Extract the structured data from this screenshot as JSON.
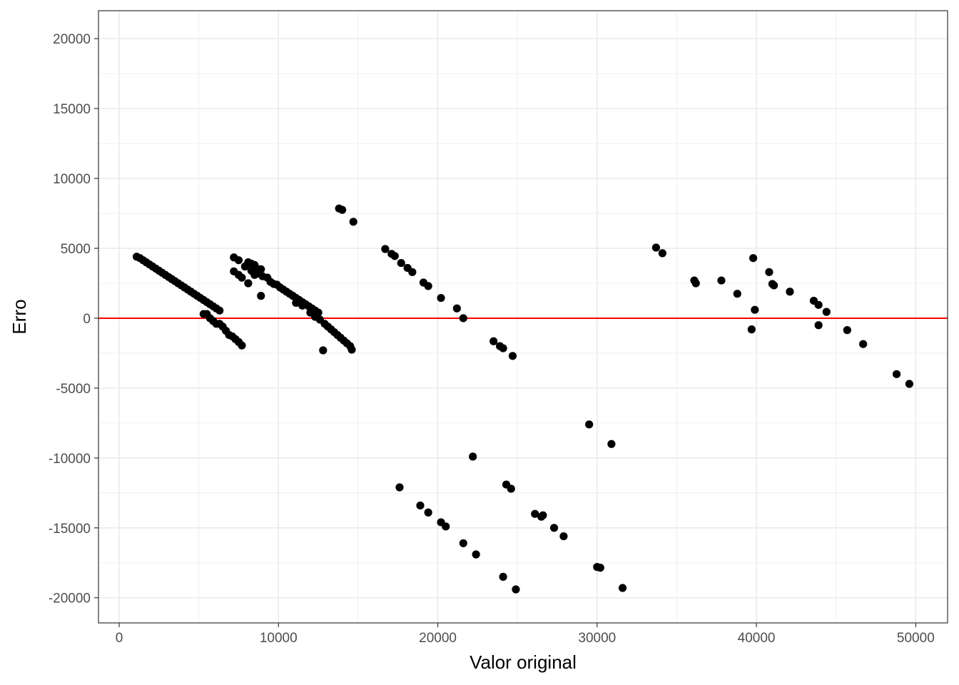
{
  "chart_data": {
    "type": "scatter",
    "xlabel": "Valor original",
    "ylabel": "Erro",
    "xlim": [
      -1300,
      52000
    ],
    "ylim": [
      -21800,
      22000
    ],
    "x_ticks": [
      0,
      10000,
      20000,
      30000,
      40000,
      50000
    ],
    "x_tick_labels": [
      "0",
      "10000",
      "20000",
      "30000",
      "40000",
      "50000"
    ],
    "y_ticks": [
      -20000,
      -15000,
      -10000,
      -5000,
      0,
      5000,
      10000,
      15000,
      20000
    ],
    "y_tick_labels": [
      "-20000",
      "-15000",
      "-10000",
      "-5000",
      "0",
      "5000",
      "10000",
      "15000",
      "20000"
    ],
    "grid": true,
    "reference_line": {
      "y": 0,
      "color": "#ff0000"
    },
    "point_color": "#000000",
    "series": [
      {
        "points": [
          [
            1100,
            4400
          ],
          [
            1300,
            4300
          ],
          [
            1500,
            4150
          ],
          [
            1700,
            4000
          ],
          [
            1900,
            3850
          ],
          [
            2100,
            3700
          ],
          [
            2300,
            3550
          ],
          [
            2500,
            3400
          ],
          [
            2700,
            3250
          ],
          [
            2900,
            3100
          ],
          [
            3100,
            2950
          ],
          [
            3300,
            2800
          ],
          [
            3500,
            2650
          ],
          [
            3700,
            2500
          ],
          [
            3900,
            2350
          ],
          [
            4100,
            2200
          ],
          [
            4300,
            2050
          ],
          [
            4500,
            1900
          ],
          [
            4700,
            1750
          ],
          [
            4900,
            1600
          ],
          [
            5100,
            1450
          ],
          [
            5300,
            1300
          ],
          [
            5500,
            1150
          ],
          [
            5700,
            1000
          ],
          [
            5900,
            850
          ],
          [
            6100,
            700
          ],
          [
            6300,
            550
          ],
          [
            5300,
            300
          ],
          [
            5500,
            300
          ],
          [
            5700,
            0
          ],
          [
            5900,
            -200
          ],
          [
            6100,
            -400
          ],
          [
            6300,
            -400
          ],
          [
            6500,
            -600
          ],
          [
            6700,
            -900
          ],
          [
            6900,
            -1200
          ],
          [
            7100,
            -1300
          ],
          [
            7300,
            -1500
          ],
          [
            7500,
            -1700
          ],
          [
            7700,
            -1950
          ],
          [
            7200,
            4350
          ],
          [
            7500,
            4150
          ],
          [
            7900,
            3700
          ],
          [
            8100,
            4000
          ],
          [
            8300,
            3900
          ],
          [
            8500,
            3800
          ],
          [
            8700,
            3500
          ],
          [
            8900,
            3500
          ],
          [
            7200,
            3350
          ],
          [
            7500,
            3100
          ],
          [
            7700,
            2900
          ],
          [
            8100,
            2500
          ],
          [
            8300,
            3400
          ],
          [
            8500,
            3100
          ],
          [
            8700,
            3200
          ],
          [
            9000,
            3000
          ],
          [
            9300,
            2900
          ],
          [
            9500,
            2600
          ],
          [
            9700,
            2450
          ],
          [
            9900,
            2400
          ],
          [
            10100,
            2200
          ],
          [
            10300,
            2050
          ],
          [
            10500,
            1900
          ],
          [
            10700,
            1750
          ],
          [
            10900,
            1600
          ],
          [
            11100,
            1450
          ],
          [
            11300,
            1300
          ],
          [
            11500,
            1150
          ],
          [
            11700,
            1000
          ],
          [
            11900,
            850
          ],
          [
            12100,
            700
          ],
          [
            12300,
            550
          ],
          [
            12500,
            400
          ],
          [
            8900,
            1600
          ],
          [
            11100,
            1100
          ],
          [
            11500,
            900
          ],
          [
            12000,
            400
          ],
          [
            12300,
            100
          ],
          [
            12600,
            -100
          ],
          [
            12900,
            -400
          ],
          [
            13100,
            -600
          ],
          [
            13300,
            -800
          ],
          [
            13500,
            -1000
          ],
          [
            13700,
            -1200
          ],
          [
            13900,
            -1400
          ],
          [
            14100,
            -1600
          ],
          [
            14300,
            -1800
          ],
          [
            14500,
            -2000
          ],
          [
            14600,
            -2250
          ],
          [
            12800,
            -2300
          ],
          [
            13800,
            7850
          ],
          [
            14000,
            7750
          ],
          [
            14700,
            6900
          ],
          [
            16700,
            4950
          ],
          [
            17100,
            4600
          ],
          [
            17300,
            4450
          ],
          [
            17700,
            3950
          ],
          [
            18100,
            3600
          ],
          [
            18400,
            3300
          ],
          [
            19100,
            2550
          ],
          [
            19400,
            2300
          ],
          [
            20200,
            1450
          ],
          [
            21200,
            700
          ],
          [
            21600,
            0
          ],
          [
            23500,
            -1650
          ],
          [
            23900,
            -2000
          ],
          [
            24100,
            -2150
          ],
          [
            24700,
            -2700
          ],
          [
            17600,
            -12100
          ],
          [
            18900,
            -13400
          ],
          [
            19400,
            -13900
          ],
          [
            20200,
            -14600
          ],
          [
            20500,
            -14900
          ],
          [
            21600,
            -16100
          ],
          [
            22400,
            -16900
          ],
          [
            24100,
            -18500
          ],
          [
            24900,
            -19400
          ],
          [
            22200,
            -9900
          ],
          [
            24300,
            -11900
          ],
          [
            24600,
            -12200
          ],
          [
            26100,
            -14000
          ],
          [
            26500,
            -14200
          ],
          [
            26600,
            -14100
          ],
          [
            27300,
            -15000
          ],
          [
            27900,
            -15600
          ],
          [
            29500,
            -7600
          ],
          [
            30900,
            -9000
          ],
          [
            30000,
            -17800
          ],
          [
            30200,
            -17850
          ],
          [
            31600,
            -19300
          ],
          [
            33700,
            5050
          ],
          [
            34100,
            4650
          ],
          [
            36100,
            2700
          ],
          [
            36200,
            2500
          ],
          [
            37800,
            2700
          ],
          [
            38800,
            1750
          ],
          [
            39800,
            4300
          ],
          [
            39900,
            600
          ],
          [
            39700,
            -800
          ],
          [
            40800,
            3300
          ],
          [
            41000,
            2450
          ],
          [
            41100,
            2350
          ],
          [
            42100,
            1900
          ],
          [
            43600,
            1250
          ],
          [
            43900,
            950
          ],
          [
            44400,
            450
          ],
          [
            43900,
            -500
          ],
          [
            45700,
            -850
          ],
          [
            46700,
            -1850
          ],
          [
            48800,
            -4000
          ],
          [
            49600,
            -4700
          ]
        ]
      }
    ]
  }
}
